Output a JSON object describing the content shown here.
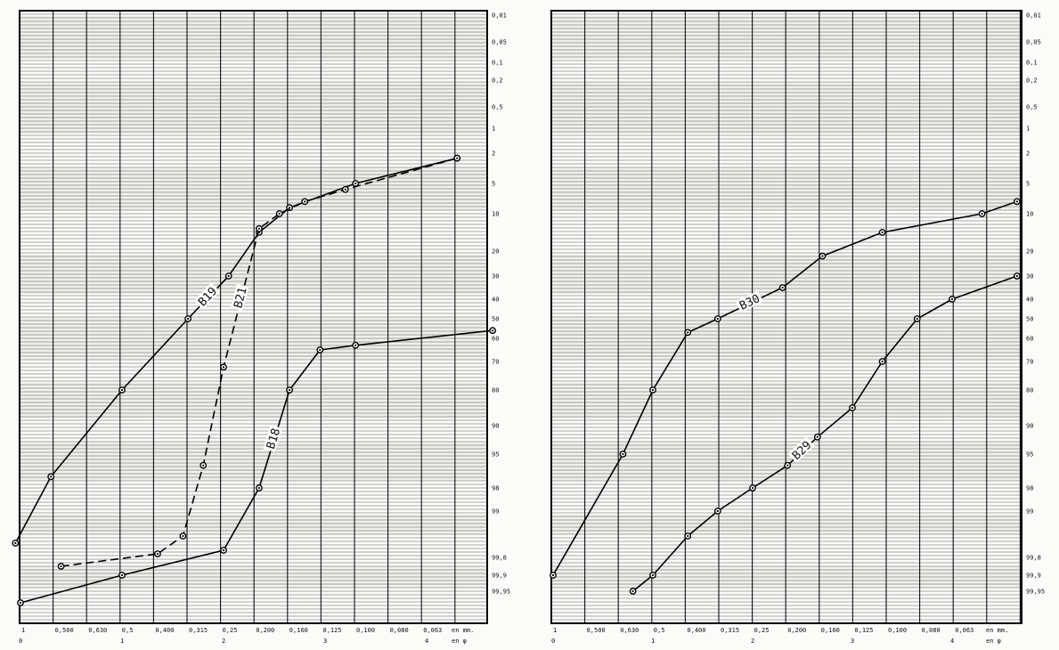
{
  "chart_data": [
    {
      "type": "line",
      "probability_ticks": [
        "0,01",
        "0,05",
        "0,1",
        "0,2",
        "0,5",
        "1",
        "2",
        "5",
        "10",
        "20",
        "30",
        "40",
        "50",
        "60",
        "70",
        "80",
        "90",
        "95",
        "98",
        "99",
        "99,8",
        "99,9",
        "99,95"
      ],
      "x_ticks_mm": [
        "1",
        "0,500",
        "0,630",
        "0,5",
        "0,400",
        "0,315",
        "0,25",
        "0,200",
        "0,160",
        "0,125",
        "0,100",
        "0,080",
        "0,063"
      ],
      "x_unit_mm": "en mm.",
      "x_ticks_phi": [
        "0",
        "1",
        "2",
        "3",
        "4"
      ],
      "x_unit_phi": "en φ",
      "ylim_pct": [
        0.01,
        99.95
      ],
      "grid": true,
      "series": [
        {
          "name": "B19",
          "line": "solid",
          "x_phi": [
            -0.05,
            0.3,
            1.0,
            1.65,
            2.05,
            2.35,
            2.65,
            3.3,
            4.3
          ],
          "y_pct": [
            99.6,
            97.0,
            80.0,
            50.0,
            30.0,
            15.0,
            9.0,
            5.0,
            2.5
          ]
        },
        {
          "name": "B21",
          "line": "dashed",
          "x_phi": [
            0.4,
            1.35,
            1.6,
            1.8,
            2.0,
            2.35,
            2.55,
            2.8,
            3.2,
            4.3
          ],
          "y_pct": [
            99.85,
            99.75,
            99.5,
            96.0,
            72.0,
            14.0,
            10.0,
            8.0,
            6.0,
            2.5
          ]
        },
        {
          "name": "B18",
          "line": "solid",
          "x_phi": [
            0.0,
            1.0,
            2.0,
            2.35,
            2.65,
            2.95,
            3.3,
            4.65
          ],
          "y_pct": [
            99.97,
            99.9,
            99.7,
            98.0,
            80.0,
            65.0,
            63.0,
            56.0
          ]
        }
      ]
    },
    {
      "type": "line",
      "probability_ticks": [
        "0,01",
        "0,05",
        "0,1",
        "0,2",
        "0,5",
        "1",
        "2",
        "5",
        "10",
        "20",
        "30",
        "40",
        "50",
        "60",
        "70",
        "80",
        "90",
        "95",
        "98",
        "99",
        "99,8",
        "99,9",
        "99,95"
      ],
      "x_ticks_mm": [
        "1",
        "0,500",
        "0,630",
        "0,5",
        "0,400",
        "0,315",
        "0,25",
        "0,200",
        "0,160",
        "0,125",
        "0,100",
        "0,080",
        "0,063"
      ],
      "x_unit_mm": "en mm.",
      "x_ticks_phi": [
        "0",
        "1",
        "2",
        "3",
        "4"
      ],
      "x_unit_phi": "en φ",
      "ylim_pct": [
        0.01,
        99.95
      ],
      "grid": true,
      "series": [
        {
          "name": "B30",
          "line": "solid",
          "x_phi": [
            0.0,
            0.7,
            1.0,
            1.35,
            1.65,
            2.3,
            2.7,
            3.3,
            4.3,
            4.65
          ],
          "y_pct": [
            99.9,
            95.0,
            80.0,
            57.0,
            50.0,
            35.0,
            22.0,
            15.0,
            10.0,
            8.0
          ]
        },
        {
          "name": "B29",
          "line": "solid",
          "x_phi": [
            0.8,
            1.0,
            1.35,
            1.65,
            2.0,
            2.35,
            2.65,
            3.0,
            3.3,
            3.65,
            4.0,
            4.65
          ],
          "y_pct": [
            99.95,
            99.9,
            99.5,
            99.0,
            98.0,
            96.0,
            92.0,
            85.0,
            70.0,
            50.0,
            40.0,
            30.0
          ]
        }
      ]
    }
  ]
}
